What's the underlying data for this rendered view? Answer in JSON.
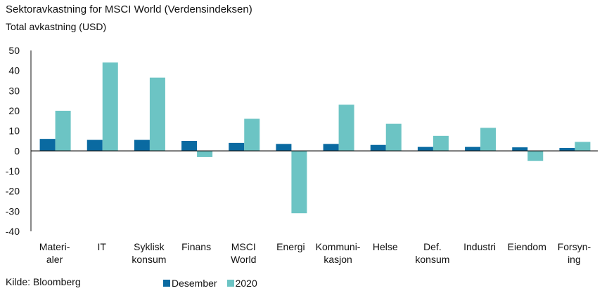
{
  "chart_data": {
    "type": "bar",
    "title": "Sektoravkastning for MSCI World (Verdensindeksen)",
    "subtitle": "Total avkastning (USD)",
    "categories": [
      [
        "Materi-",
        "aler"
      ],
      [
        "IT"
      ],
      [
        "Syklisk",
        "konsum"
      ],
      [
        "Finans"
      ],
      [
        "MSCI",
        "World"
      ],
      [
        "Energi"
      ],
      [
        "Kommuni-",
        "kasjon"
      ],
      [
        "Helse"
      ],
      [
        "Def.",
        "konsum"
      ],
      [
        "Industri"
      ],
      [
        "Eiendom"
      ],
      [
        "Forsyn-",
        "ing"
      ]
    ],
    "series": [
      {
        "name": "Desember",
        "color": "#0a6aa1",
        "values": [
          6,
          5.5,
          5.5,
          5,
          4,
          3.5,
          3.5,
          3,
          2,
          2,
          1.8,
          1.5
        ]
      },
      {
        "name": "2020",
        "color": "#6cc4c4",
        "values": [
          20,
          44,
          36.5,
          -3,
          16,
          -31,
          23,
          13.5,
          7.5,
          11.5,
          -5,
          4.5
        ]
      }
    ],
    "ylim": [
      -40,
      50
    ],
    "yticks": [
      50,
      40,
      30,
      20,
      10,
      0,
      -10,
      -20,
      -30,
      -40
    ],
    "grid": false,
    "legend": "bottom"
  },
  "footer": {
    "source": "Kilde: Bloomberg"
  }
}
